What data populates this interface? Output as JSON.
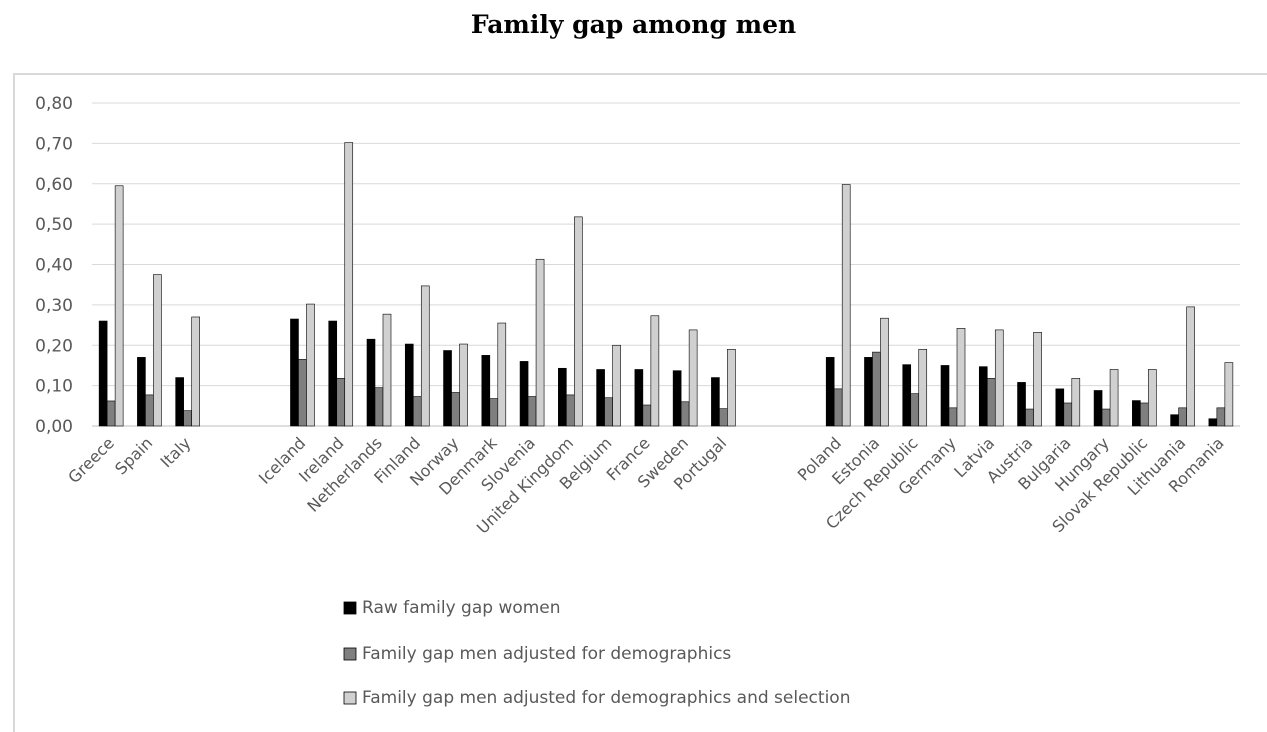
{
  "chart_data": {
    "type": "bar",
    "title": "Family gap among men",
    "ylim": [
      0,
      0.8
    ],
    "yticks": [
      "0,00",
      "0,10",
      "0,20",
      "0,30",
      "0,40",
      "0,50",
      "0,60",
      "0,70",
      "0,80"
    ],
    "grid": true,
    "legend_position": "bottom",
    "groups": [
      [
        "Greece",
        "Spain",
        "Italy"
      ],
      [
        "Iceland",
        "Ireland",
        "Netherlands",
        "Finland",
        "Norway",
        "Denmark",
        "Slovenia",
        "United Kingdom",
        "Belgium",
        "France",
        "Sweden",
        "Portugal"
      ],
      [
        "Poland",
        "Estonia",
        "Czech Republic",
        "Germany",
        "Latvia",
        "Austria",
        "Bulgaria",
        "Hungary",
        "Slovak Republic",
        "Lithuania",
        "Romania"
      ]
    ],
    "categories": [
      "Greece",
      "Spain",
      "Italy",
      "Iceland",
      "Ireland",
      "Netherlands",
      "Finland",
      "Norway",
      "Denmark",
      "Slovenia",
      "United Kingdom",
      "Belgium",
      "France",
      "Sweden",
      "Portugal",
      "Poland",
      "Estonia",
      "Czech Republic",
      "Germany",
      "Latvia",
      "Austria",
      "Bulgaria",
      "Hungary",
      "Slovak Republic",
      "Lithuania",
      "Romania"
    ],
    "series": [
      {
        "name": "Raw family gap women",
        "color": "#000000",
        "values": [
          0.26,
          0.17,
          0.12,
          0.265,
          0.26,
          0.215,
          0.203,
          0.187,
          0.175,
          0.16,
          0.143,
          0.14,
          0.14,
          0.137,
          0.12,
          0.17,
          0.17,
          0.152,
          0.15,
          0.147,
          0.108,
          0.092,
          0.088,
          0.063,
          0.028,
          0.018
        ]
      },
      {
        "name": "Family gap men adjusted for demographics",
        "color": "#7f7f7f",
        "values": [
          0.062,
          0.077,
          0.038,
          0.165,
          0.118,
          0.095,
          0.073,
          0.083,
          0.068,
          0.073,
          0.077,
          0.07,
          0.052,
          0.06,
          0.043,
          0.092,
          0.183,
          0.08,
          0.045,
          0.118,
          0.042,
          0.057,
          0.042,
          0.057,
          0.045,
          0.045
        ]
      },
      {
        "name": "Family gap men adjusted for demographics and selection",
        "color": "#d0d0d0",
        "values": [
          0.595,
          0.375,
          0.27,
          0.302,
          0.702,
          0.277,
          0.347,
          0.203,
          0.255,
          0.413,
          0.518,
          0.2,
          0.273,
          0.238,
          0.19,
          0.598,
          0.267,
          0.19,
          0.242,
          0.238,
          0.232,
          0.118,
          0.14,
          0.14,
          0.295,
          0.157
        ]
      }
    ]
  }
}
